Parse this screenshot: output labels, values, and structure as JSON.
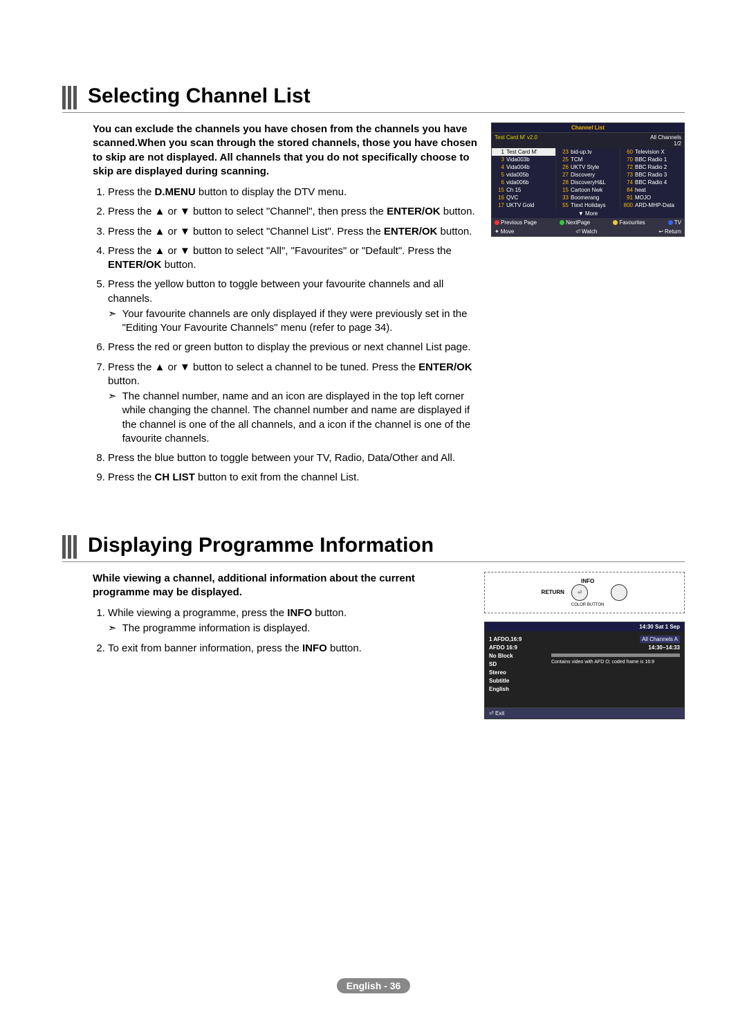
{
  "section1": {
    "heading": "Selecting Channel List",
    "intro": "You can exclude the channels you have chosen from the channels you have scanned.When you scan through the stored channels, those you have chosen to skip are not displayed. All channels that you do not specifically choose to skip are displayed during scanning.",
    "step1_a": "Press the ",
    "step1_b": "D.MENU",
    "step1_c": " button to display the DTV menu.",
    "step2_a": "Press the ▲ or ▼ button to select \"Channel\", then press the ",
    "step2_b": "ENTER/OK",
    "step2_c": " button.",
    "step3_a": "Press the ▲ or ▼ button to select \"Channel List\". Press the ",
    "step3_b": "ENTER/OK",
    "step3_c": " button.",
    "step4_a": "Press the ▲ or ▼ button to select \"All\", \"Favourites\" or \"Default\". Press the ",
    "step4_b": "ENTER/OK",
    "step4_c": " button.",
    "step5": "Press the yellow button to toggle between your favourite channels and all channels.",
    "step5_note": "Your favourite channels are only displayed if they were previously set in the \"Editing Your Favourite Channels\" menu (refer to page 34).",
    "step6": "Press the red or green button to display the previous or next channel List page.",
    "step7_a": "Press the ▲ or ▼ button to select a channel to be tuned. Press the ",
    "step7_b": "ENTER/OK",
    "step7_c": " button.",
    "step7_note": "The channel number, name and an icon are displayed in the top left corner while changing the channel. The channel number and name are displayed if the channel is one of the all channels, and a  icon if the channel is one of the favourite channels.",
    "step8": "Press the blue button to toggle between your TV, Radio, Data/Other and All.",
    "step9_a": "Press the ",
    "step9_b": "CH LIST",
    "step9_c": " button to exit from the channel List."
  },
  "channel_list": {
    "title": "Channel List",
    "top_left": "Test Card M' v2.0",
    "top_right1": "All Channels",
    "top_right2": "1/2",
    "col1": [
      {
        "n": "1",
        "t": "Test Card M'"
      },
      {
        "n": "3",
        "t": "Vida003b"
      },
      {
        "n": "4",
        "t": "Vida004b"
      },
      {
        "n": "5",
        "t": "vida005b"
      },
      {
        "n": "6",
        "t": "vida006b"
      },
      {
        "n": "15",
        "t": "Ch 15"
      },
      {
        "n": "16",
        "t": "QVC"
      },
      {
        "n": "17",
        "t": "UKTV Gold"
      }
    ],
    "col2": [
      {
        "n": "23",
        "t": "bid-up.tv"
      },
      {
        "n": "25",
        "t": "TCM"
      },
      {
        "n": "26",
        "t": "UKTV Style"
      },
      {
        "n": "27",
        "t": "Discovery"
      },
      {
        "n": "28",
        "t": "DiscoveryH&L"
      },
      {
        "n": "15",
        "t": "Cartoon Nwk"
      },
      {
        "n": "33",
        "t": "Boomerang"
      },
      {
        "n": "55",
        "t": "Ttext Holidays"
      }
    ],
    "col3": [
      {
        "n": "60",
        "t": "Television X"
      },
      {
        "n": "70",
        "t": "BBC Radio 1"
      },
      {
        "n": "72",
        "t": "BBC Radio 2"
      },
      {
        "n": "73",
        "t": "BBC Radio 3"
      },
      {
        "n": "74",
        "t": "BBC Radio 4"
      },
      {
        "n": "84",
        "t": "heat"
      },
      {
        "n": "91",
        "t": "MOJO"
      },
      {
        "n": "800",
        "t": "ARD-MHP-Data"
      }
    ],
    "more": "▼ More",
    "f1_prev": "Previous Page",
    "f1_next": "NextPage",
    "f1_fav": "Favourites",
    "f1_tv": "TV",
    "f2_move": "Move",
    "f2_watch": "Watch",
    "f2_return": "Return"
  },
  "section2": {
    "heading": "Displaying Programme Information",
    "intro": "While viewing a channel, additional information about the current programme may be displayed.",
    "step1_a": "While viewing a programme, press the ",
    "step1_b": "INFO",
    "step1_c": " button.",
    "step1_note": "The programme information is displayed.",
    "step2_a": "To exit from banner information, press the ",
    "step2_b": "INFO",
    "step2_c": " button."
  },
  "remote": {
    "return": "RETURN",
    "info": "INFO",
    "color": "COLOR BUTTON"
  },
  "prog_info": {
    "timebar": "14:30 Sat 1 Sep",
    "l1": "1 AFDO,16:9",
    "l2": "AFDO 16:9",
    "l3": "No Block",
    "l4": "SD",
    "l5": "Stereo",
    "l6": "Subtitle",
    "l7": "English",
    "badge": "All Channels   A",
    "times": "14:30~14:33",
    "desc": "Contains video with AFD O; coded frame is 16:9",
    "exit": "Exit"
  },
  "footer": "English - 36"
}
